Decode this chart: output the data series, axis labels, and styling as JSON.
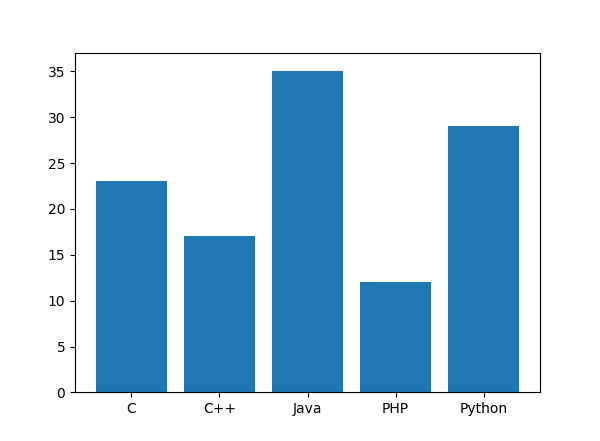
{
  "categories": [
    "C",
    "C++",
    "Java",
    "PHP",
    "Python"
  ],
  "values": [
    23,
    17,
    35,
    12,
    29
  ],
  "bar_color": "#2077b4",
  "ylim": [
    0,
    37
  ],
  "yticks": [
    0,
    5,
    10,
    15,
    20,
    25,
    30,
    35
  ],
  "background_color": "#ffffff",
  "figsize": [
    6.0,
    4.41
  ],
  "dpi": 100
}
